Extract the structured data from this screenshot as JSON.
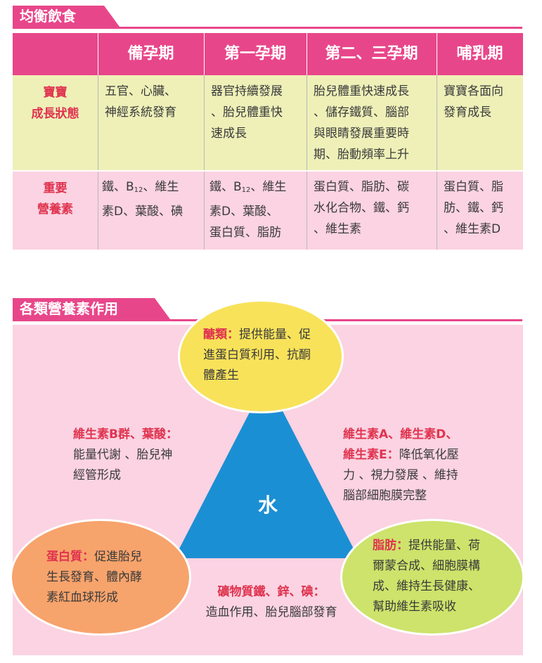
{
  "section1_title": "均衡飲食",
  "table": {
    "headers": [
      "備孕期",
      "第一孕期",
      "第二、三孕期",
      "哺乳期"
    ],
    "row1_label": [
      "寶寶",
      "成長狀態"
    ],
    "row1": [
      [
        "五官、心臟、",
        "神經系統發育"
      ],
      [
        "器官持續發展",
        "、胎兒體重快",
        "速成長"
      ],
      [
        "胎兒體重快速成長",
        "、儲存鐵質、腦部",
        "與眼睛發展重要時",
        "期、胎動頻率上升"
      ],
      [
        "寶寶各面向",
        "發育成長"
      ]
    ],
    "row2_label": [
      "重要",
      "營養素"
    ],
    "row2": {
      "c1_a": "鐵、B",
      "c1_sub": "12",
      "c1_b": "、維生",
      "c1_l2": "素D、葉酸、碘",
      "c2_a": "鐵、B",
      "c2_sub": "12",
      "c2_b": "、維生",
      "c2_l2": "素D、葉酸、",
      "c2_l3": "蛋白質、脂肪",
      "c3": [
        "蛋白質、脂肪、碳",
        "水化合物、鐵、鈣",
        "、維生素"
      ],
      "c4": [
        "蛋白質、脂",
        "肪、鐵、鈣",
        "、維生素D"
      ]
    }
  },
  "section2_title": "各類營養素作用",
  "diagram": {
    "center": "水",
    "carb_label": "醣類：",
    "carb_l1": "提供能量、促",
    "carb_l2": "進蛋白質利用、抗酮",
    "carb_l3": "體產生",
    "vitb_label": "維生素B群、葉酸：",
    "vitb_l1": "能量代謝 、胎兒神",
    "vitb_l2": "經管形成",
    "vitade_label1": "維生素A、維生素D、",
    "vitade_label2": "維生素E：",
    "vitade_l2": "降低氧化壓",
    "vitade_l3": "力 、視力發展 、維持",
    "vitade_l4": "腦部細胞膜完整",
    "protein_label": "蛋白質：",
    "protein_l1": "促進胎兒",
    "protein_l2": "生長發育、體內酵",
    "protein_l3": "素紅血球形成",
    "mineral_label": "礦物質鐵、鋅、碘：",
    "mineral_l1": "造血作用、胎兒腦部發育",
    "fat_label": "脂肪：",
    "fat_l1": "提供能量、荷",
    "fat_l2": "爾蒙合成、細胞膜構",
    "fat_l3": "成、維持生長健康、",
    "fat_l4": "幫助維生素吸收"
  },
  "colors": {
    "accent": "#e8468a",
    "row1": "#eef0b8",
    "row2": "#fbd3e2",
    "triangle": "#1b8fd3",
    "label_red": "#e0334f"
  }
}
